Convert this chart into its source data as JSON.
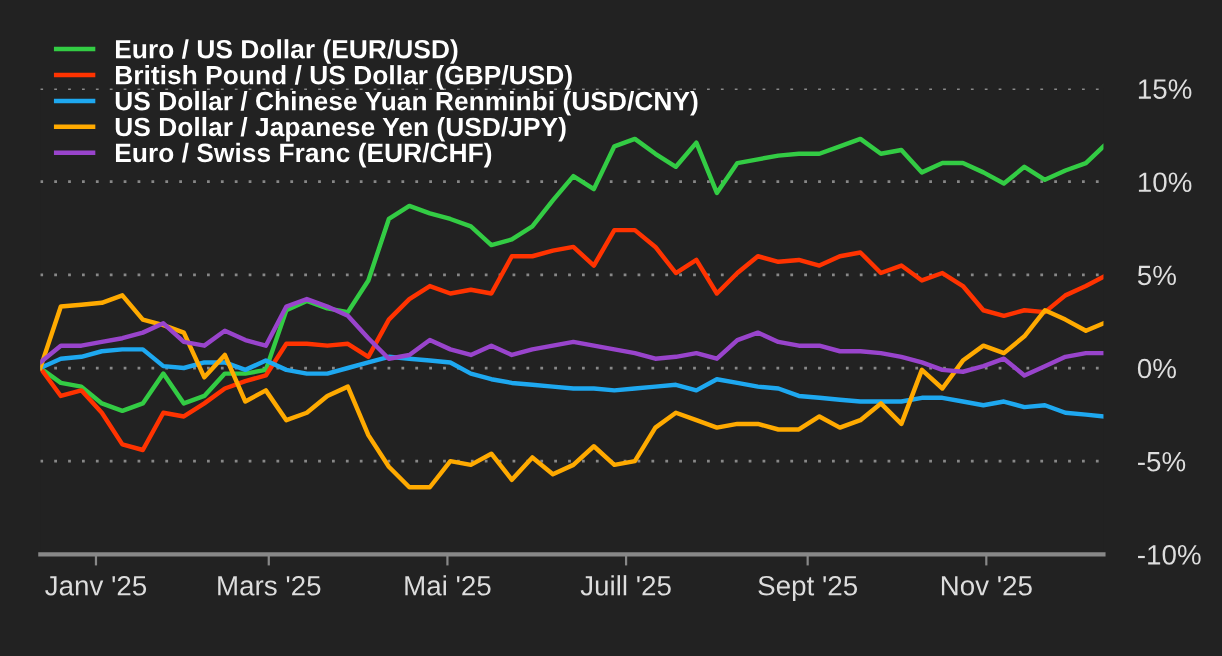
{
  "chart_data": {
    "type": "line",
    "x": [
      "2024-12-13",
      "2024-12-20",
      "2024-12-27",
      "2025-01-03",
      "2025-01-10",
      "2025-01-17",
      "2025-01-24",
      "2025-01-31",
      "2025-02-07",
      "2025-02-14",
      "2025-02-21",
      "2025-02-28",
      "2025-03-07",
      "2025-03-14",
      "2025-03-21",
      "2025-03-28",
      "2025-04-04",
      "2025-04-11",
      "2025-04-18",
      "2025-04-25",
      "2025-05-02",
      "2025-05-09",
      "2025-05-16",
      "2025-05-23",
      "2025-05-30",
      "2025-06-06",
      "2025-06-13",
      "2025-06-20",
      "2025-06-27",
      "2025-07-04",
      "2025-07-11",
      "2025-07-18",
      "2025-07-25",
      "2025-08-01",
      "2025-08-08",
      "2025-08-15",
      "2025-08-22",
      "2025-08-29",
      "2025-09-05",
      "2025-09-12",
      "2025-09-19",
      "2025-09-26",
      "2025-10-03",
      "2025-10-10",
      "2025-10-17",
      "2025-10-24",
      "2025-10-31",
      "2025-11-07",
      "2025-11-14",
      "2025-11-21",
      "2025-11-28",
      "2025-12-05",
      "2025-12-11"
    ],
    "series": [
      {
        "name": "Euro / US Dollar (EUR/USD)",
        "color": "#33cc44",
        "values": [
          0,
          -0.8,
          -1.0,
          -1.9,
          -2.3,
          -1.9,
          -0.3,
          -1.9,
          -1.5,
          -0.3,
          -0.3,
          -0.1,
          3.1,
          3.6,
          3.2,
          3.0,
          4.7,
          8.0,
          8.7,
          8.3,
          8.0,
          7.6,
          6.6,
          6.9,
          7.6,
          9.0,
          10.3,
          9.6,
          11.9,
          12.3,
          11.5,
          10.8,
          12.1,
          9.4,
          11.0,
          11.2,
          11.4,
          11.5,
          11.5,
          11.9,
          12.3,
          11.5,
          11.7,
          10.5,
          11.0,
          11.0,
          10.5,
          9.9,
          10.8,
          10.1,
          10.6,
          11.0,
          11.9
        ]
      },
      {
        "name": "British Pound / US Dollar (GBP/USD)",
        "color": "#ff3300",
        "values": [
          0,
          -1.5,
          -1.2,
          -2.4,
          -4.1,
          -4.4,
          -2.4,
          -2.6,
          -1.9,
          -1.1,
          -0.7,
          -0.4,
          1.3,
          1.3,
          1.2,
          1.3,
          0.6,
          2.6,
          3.7,
          4.4,
          4.0,
          4.2,
          4.0,
          6.0,
          6.0,
          6.3,
          6.5,
          5.5,
          7.4,
          7.4,
          6.5,
          5.1,
          5.8,
          4.0,
          5.1,
          6.0,
          5.7,
          5.8,
          5.5,
          6.0,
          6.2,
          5.1,
          5.5,
          4.7,
          5.1,
          4.4,
          3.1,
          2.8,
          3.1,
          3.0,
          3.9,
          4.4,
          4.9
        ]
      },
      {
        "name": "US Dollar / Chinese Yuan Renminbi (USD/CNY)",
        "color": "#1ea8f0",
        "values": [
          0,
          0.5,
          0.6,
          0.9,
          1.0,
          1.0,
          0.1,
          0,
          0.3,
          0.3,
          -0.1,
          0.4,
          -0.1,
          -0.3,
          -0.3,
          0,
          0.3,
          0.6,
          0.5,
          0.4,
          0.3,
          -0.3,
          -0.6,
          -0.8,
          -0.9,
          -1.0,
          -1.1,
          -1.1,
          -1.2,
          -1.1,
          -1.0,
          -0.9,
          -1.2,
          -0.6,
          -0.8,
          -1.0,
          -1.1,
          -1.5,
          -1.6,
          -1.7,
          -1.8,
          -1.8,
          -1.8,
          -1.6,
          -1.6,
          -1.8,
          -2.0,
          -1.8,
          -2.1,
          -2.0,
          -2.4,
          -2.5,
          -2.6
        ]
      },
      {
        "name": "US Dollar / Japanese Yen (USD/JPY)",
        "color": "#ffaa00",
        "values": [
          0,
          3.3,
          3.4,
          3.5,
          3.9,
          2.6,
          2.3,
          1.9,
          -0.5,
          0.7,
          -1.8,
          -1.2,
          -2.8,
          -2.4,
          -1.5,
          -1.0,
          -3.6,
          -5.3,
          -6.4,
          -6.4,
          -5.0,
          -5.2,
          -4.6,
          -6.0,
          -4.8,
          -5.7,
          -5.2,
          -4.2,
          -5.2,
          -5.0,
          -3.2,
          -2.4,
          -2.8,
          -3.2,
          -3.0,
          -3.0,
          -3.3,
          -3.3,
          -2.6,
          -3.2,
          -2.8,
          -1.9,
          -3.0,
          -0.1,
          -1.1,
          0.4,
          1.2,
          0.8,
          1.7,
          3.1,
          2.6,
          2.0,
          2.4
        ]
      },
      {
        "name": "Euro / Swiss Franc (EUR/CHF)",
        "color": "#9944cc",
        "values": [
          0.3,
          1.2,
          1.2,
          1.4,
          1.6,
          1.9,
          2.4,
          1.4,
          1.2,
          2.0,
          1.5,
          1.2,
          3.3,
          3.7,
          3.3,
          2.8,
          1.6,
          0.5,
          0.7,
          1.5,
          1.0,
          0.7,
          1.2,
          0.7,
          1.0,
          1.2,
          1.4,
          1.2,
          1.0,
          0.8,
          0.5,
          0.6,
          0.8,
          0.5,
          1.5,
          1.9,
          1.4,
          1.2,
          1.2,
          0.9,
          0.9,
          0.8,
          0.6,
          0.3,
          -0.1,
          -0.2,
          0.1,
          0.5,
          -0.4,
          0.1,
          0.6,
          0.8,
          0.8
        ]
      }
    ],
    "xlim": [
      "2024-12-13",
      "2025-12-11"
    ],
    "xticks": [
      {
        "value": "2025-01-01",
        "label": "Janv '25"
      },
      {
        "value": "2025-03-01",
        "label": "Mars '25"
      },
      {
        "value": "2025-05-01",
        "label": "Mai '25"
      },
      {
        "value": "2025-07-01",
        "label": "Juill '25"
      },
      {
        "value": "2025-09-01",
        "label": "Sept '25"
      },
      {
        "value": "2025-11-01",
        "label": "Nov '25"
      }
    ],
    "ylim": [
      -10,
      15
    ],
    "yticks": [
      {
        "value": 15,
        "label": "15%"
      },
      {
        "value": 10,
        "label": "10%"
      },
      {
        "value": 5,
        "label": "5%"
      },
      {
        "value": 0,
        "label": "0%"
      },
      {
        "value": -5,
        "label": "-5%"
      },
      {
        "value": -10,
        "label": "-10%"
      }
    ],
    "grid": "y",
    "legend": "top left",
    "line_style": "solid",
    "marker": "none"
  }
}
